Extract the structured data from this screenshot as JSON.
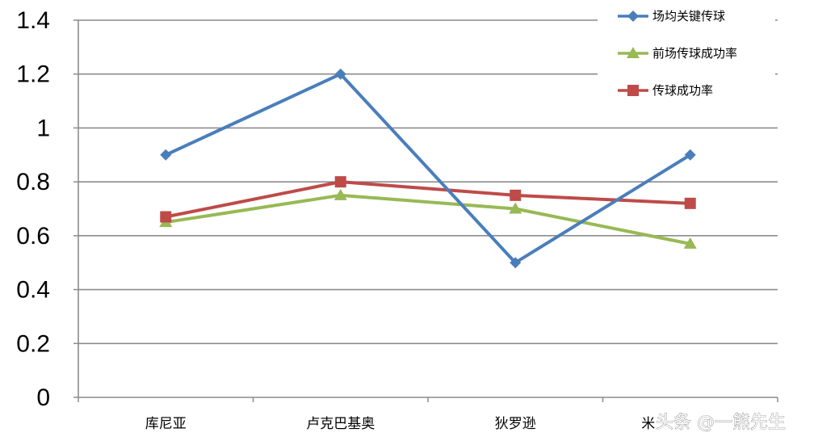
{
  "chart_data": {
    "type": "line",
    "categories": [
      "库尼亚",
      "卢克巴基奥",
      "狄罗逊",
      "米"
    ],
    "ylim": [
      0,
      1.4
    ],
    "yticks": [
      "0",
      "0.2",
      "0.4",
      "0.6",
      "0.8",
      "1",
      "1.2",
      "1.4"
    ],
    "grid": true,
    "legend_position": "top-right",
    "series": [
      {
        "name": "场均关键传球",
        "values": [
          0.9,
          1.2,
          0.5,
          0.9
        ],
        "color": "#4a7ebb",
        "marker": "diamond"
      },
      {
        "name": "前场传球成功率",
        "values": [
          0.65,
          0.75,
          0.7,
          0.57
        ],
        "color": "#98b954",
        "marker": "triangle"
      },
      {
        "name": "传球成功率",
        "values": [
          0.67,
          0.8,
          0.75,
          0.72
        ],
        "color": "#be4b48",
        "marker": "square"
      }
    ]
  },
  "watermark": "头条 @一熊先生"
}
